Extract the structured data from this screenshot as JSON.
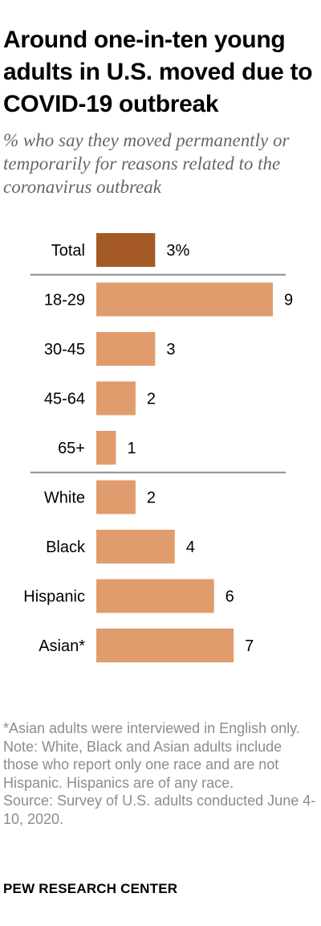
{
  "title": "Around one-in-ten young adults in U.S. moved due to COVID-19 outbreak",
  "subtitle": "% who say they moved permanently or temporarily for reasons related to the coronavirus outbreak",
  "chart_data": {
    "type": "bar",
    "orientation": "horizontal",
    "categories": [
      "Total",
      "18-29",
      "30-45",
      "45-64",
      "65+",
      "White",
      "Black",
      "Hispanic",
      "Asian*"
    ],
    "values": [
      3,
      9,
      3,
      2,
      1,
      2,
      4,
      6,
      7
    ],
    "value_labels": [
      "3%",
      "9",
      "3",
      "2",
      "1",
      "2",
      "4",
      "6",
      "7"
    ],
    "groups": [
      [
        "Total"
      ],
      [
        "18-29",
        "30-45",
        "45-64",
        "65+"
      ],
      [
        "White",
        "Black",
        "Hispanic",
        "Asian*"
      ]
    ],
    "xlim": [
      0,
      9
    ],
    "grid": false,
    "legend": "none",
    "colors": {
      "total": "#a55a26",
      "bars": "#e09c6c",
      "divider": "#8c8c8c"
    }
  },
  "notes": {
    "asian": "*Asian adults were interviewed in English only.",
    "note": "Note: White, Black and Asian adults include those who report only one race and are not Hispanic. Hispanics are of any race.",
    "source": "Source: Survey of U.S. adults conducted June 4-10, 2020."
  },
  "brand": "PEW RESEARCH CENTER"
}
